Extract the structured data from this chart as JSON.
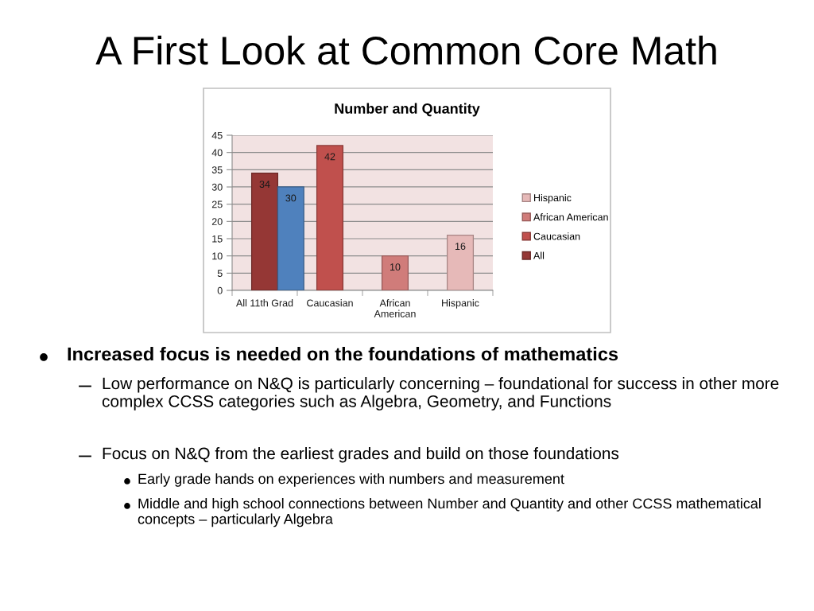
{
  "chart_data": {
    "type": "bar",
    "title": "A First Look at Common Core Math",
    "subtitle": "Number and Quantity",
    "categories": [
      "All 11th Grad",
      "Caucasian",
      "African American",
      "Hispanic"
    ],
    "series": [
      {
        "name": "All",
        "color": "#953735",
        "values": [
          34,
          null,
          null,
          null
        ]
      },
      {
        "color": "#4f81bd",
        "values": [
          30,
          null,
          null,
          null
        ]
      },
      {
        "name": "Caucasian",
        "color": "#c0504d",
        "values": [
          null,
          42,
          null,
          null
        ]
      },
      {
        "name": "African American",
        "color": "#d07c7a",
        "values": [
          null,
          null,
          10,
          null
        ]
      },
      {
        "name": "Hispanic",
        "color": "#e6b9b8",
        "values": [
          null,
          null,
          null,
          16
        ]
      }
    ],
    "ylim": [
      0,
      45
    ],
    "yticks": [
      0,
      5,
      10,
      15,
      20,
      25,
      30,
      35,
      40,
      45
    ],
    "grid": "y",
    "legend": "right",
    "data_labels": true,
    "annotations": [
      "Increased focus is needed on the foundations of mathematics",
      "Low performance on N&Q is particularly concerning – foundational for success in other more complex CCSS categories such as Algebra, Geometry, and Functions",
      "Focus on N&Q from the earliest grades and build on those foundations",
      "Early grade hands on experiences with numbers and measurement",
      "Middle and high school connections between Number and Quantity and other CCSS mathematical concepts – particularly Algebra"
    ]
  }
}
